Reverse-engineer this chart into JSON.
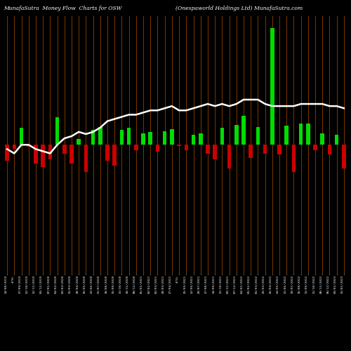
{
  "title_left": "MunafaSutra  Money Flow  Charts for OSW",
  "title_right": "(Onespaworld Holdings Ltd) MunafaSutra.com",
  "background_color": "#000000",
  "bar_color_up": "#00dd00",
  "bar_color_down": "#cc0000",
  "grid_color": "#7B3800",
  "line_color": "#ffffff",
  "line_width": 1.8,
  "categories": [
    "14/08/2019",
    "4/9%",
    "17/09/2019",
    "22/10/2019",
    "12/11/2019",
    "03/12/2019",
    "07/01/2020",
    "04/02/2020",
    "03/03/2020",
    "31/03/2020",
    "28/04/2020",
    "26/05/2020",
    "23/06/2020",
    "21/07/2020",
    "18/08/2020",
    "15/09/2020",
    "13/10/2020",
    "10/11/2020",
    "08/12/2020",
    "05/01/2021",
    "02/02/2021",
    "02/03/2021",
    "30/03/2021",
    "27/04/2021",
    "4/5%",
    "25/05/2021",
    "22/06/2021",
    "20/07/2021",
    "17/08/2021",
    "14/09/2021",
    "12/10/2021",
    "09/11/2021",
    "07/12/2021",
    "04/01/2022",
    "01/02/2022",
    "01/03/2022",
    "29/03/2022",
    "26/04/2022",
    "24/05/2022",
    "21/06/2022",
    "19/07/2022",
    "16/08/2022",
    "13/09/2022",
    "11/10/2022",
    "08/11/2022",
    "06/12/2022",
    "03/01/2023",
    "31/01/2023"
  ],
  "bar_values": [
    -52,
    -12,
    55,
    -6,
    -62,
    -72,
    -48,
    90,
    -28,
    -62,
    18,
    -88,
    48,
    58,
    -52,
    -68,
    48,
    55,
    -18,
    38,
    42,
    -22,
    45,
    50,
    -4,
    -18,
    32,
    38,
    -28,
    -48,
    55,
    -78,
    65,
    95,
    -42,
    58,
    -28,
    380,
    -32,
    62,
    -88,
    70,
    70,
    -18,
    38,
    -32,
    32,
    -78
  ],
  "line_values": [
    58,
    56,
    60,
    60,
    58,
    57,
    56,
    60,
    63,
    64,
    66,
    65,
    66,
    68,
    71,
    72,
    73,
    74,
    74,
    75,
    76,
    76,
    77,
    78,
    76,
    76,
    77,
    78,
    79,
    78,
    79,
    78,
    79,
    81,
    81,
    81,
    79,
    78,
    78,
    78,
    78,
    79,
    79,
    79,
    79,
    78,
    78,
    77
  ],
  "ylim_bars": [
    -420,
    420
  ],
  "line_ylim": [
    0,
    120
  ],
  "figsize": [
    5.0,
    5.0
  ],
  "dpi": 100
}
